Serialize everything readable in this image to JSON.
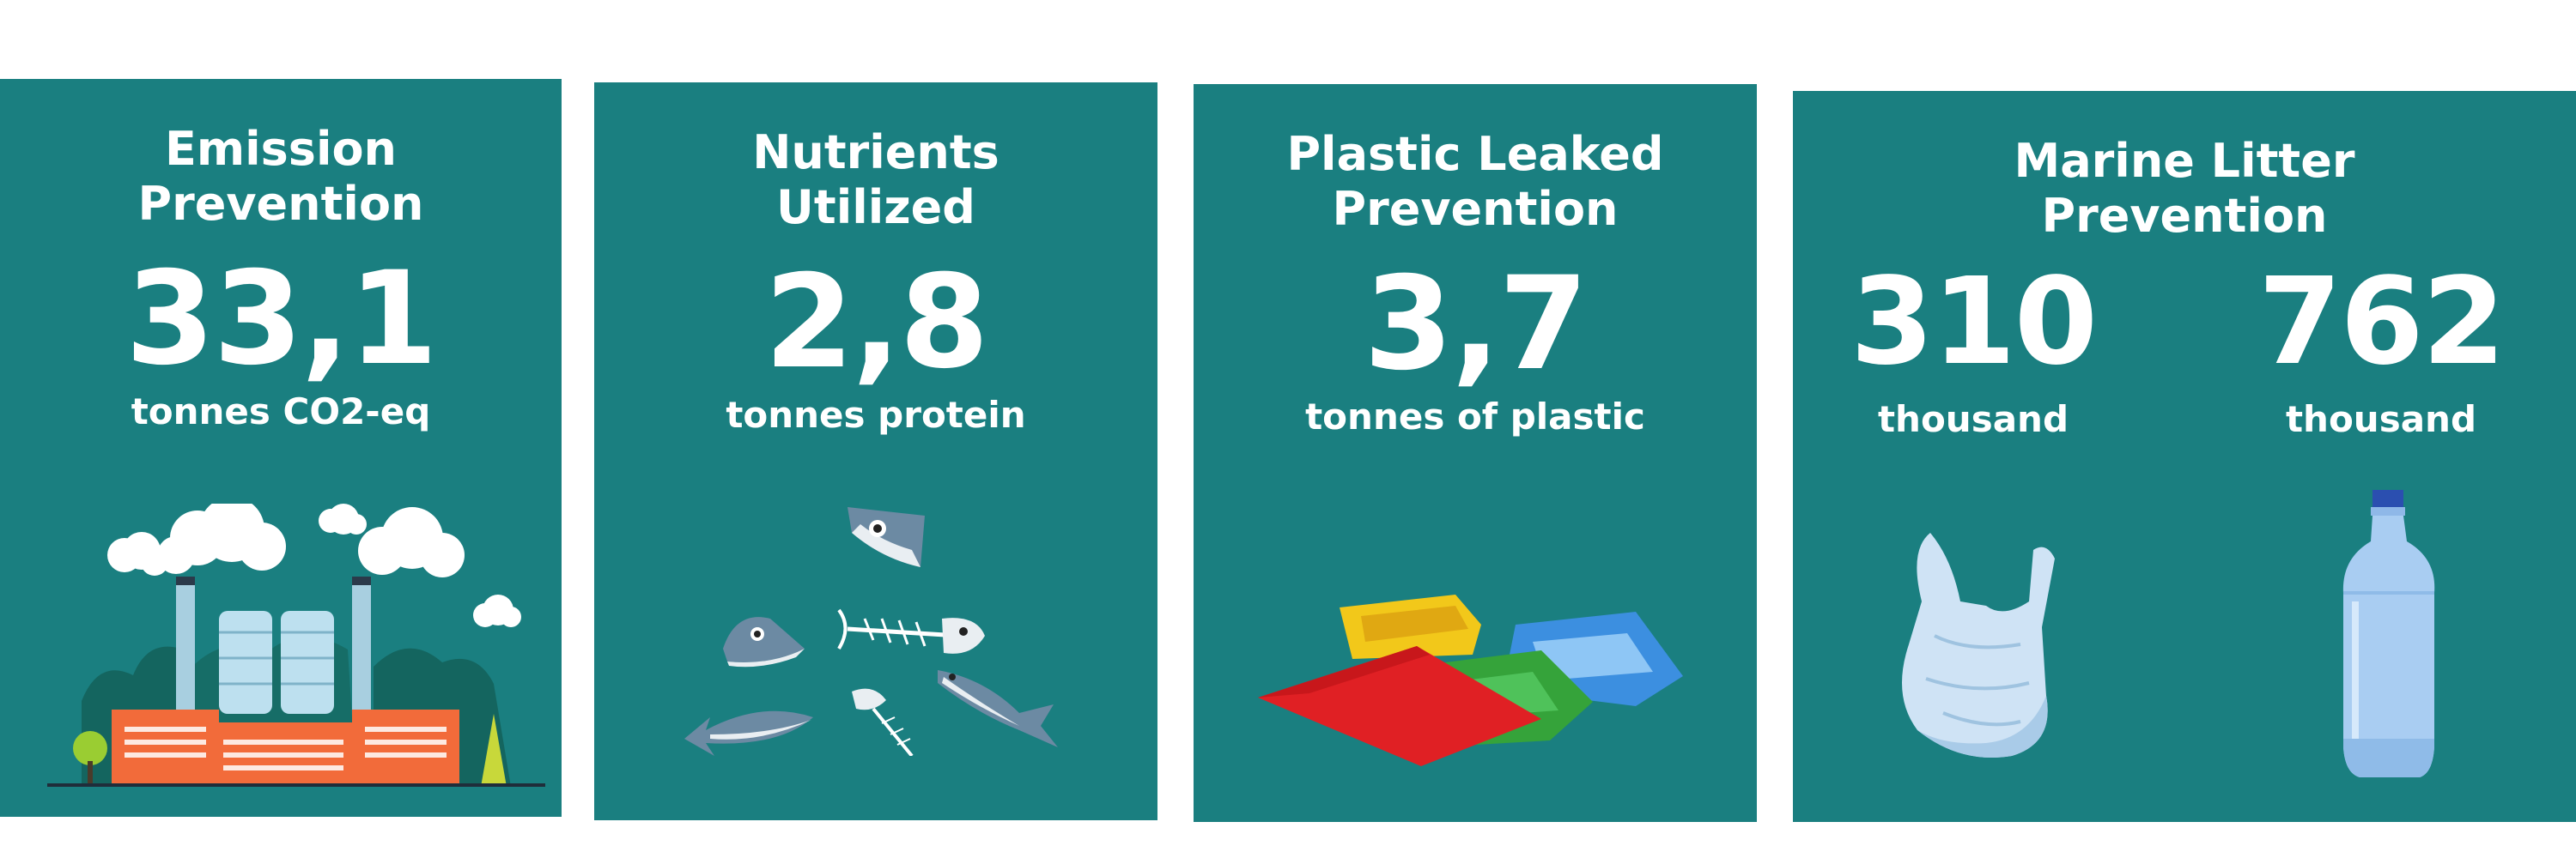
{
  "cards": [
    {
      "title_line1": "Emission",
      "title_line2": "Prevention",
      "value": "33,1",
      "unit": "tonnes CO2-eq",
      "illustration": "factory-icon"
    },
    {
      "title_line1": "Nutrients",
      "title_line2": "Utilized",
      "value": "2,8",
      "unit": "tonnes protein",
      "illustration": "fish-waste-icon"
    },
    {
      "title_line1": "Plastic Leaked",
      "title_line2": "Prevention",
      "value": "3,7",
      "unit": "tonnes of plastic",
      "illustration": "plastic-pile-icon"
    },
    {
      "title_line1": "Marine Litter",
      "title_line2": "Prevention",
      "items": [
        {
          "value": "310",
          "unit": "thousand",
          "illustration": "plastic-bag-icon"
        },
        {
          "value": "762",
          "unit": "thousand",
          "illustration": "plastic-bottle-icon"
        }
      ]
    }
  ],
  "colors": {
    "card_bg": "#1a7f80",
    "text": "#ffffff"
  }
}
